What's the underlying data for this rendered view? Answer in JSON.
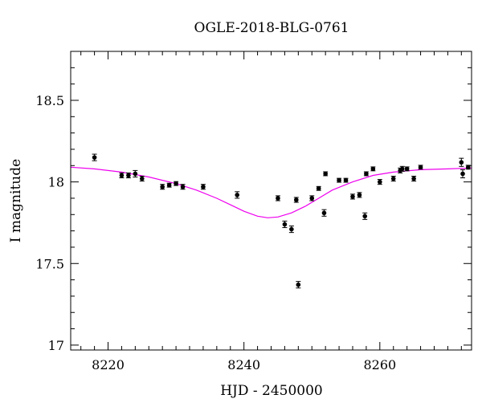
{
  "chart_data": {
    "type": "scatter",
    "title": "OGLE-2018-BLG-0761",
    "xlabel": "HJD - 2450000",
    "ylabel": "I magnitude",
    "xlim": [
      8214.5,
      8273.5
    ],
    "ylim": [
      18.8,
      16.97
    ],
    "y_inverted": true,
    "x_ticks": [
      8220,
      8240,
      8260
    ],
    "x_tick_labels": [
      "8220",
      "8240",
      "8260"
    ],
    "x_minor_step": 2,
    "y_ticks": [
      17,
      17.5,
      18,
      18.5
    ],
    "y_tick_labels": [
      "17",
      "17.5",
      "18",
      "18.5"
    ],
    "y_minor_step": 0.1,
    "grid": false,
    "colors": {
      "data": "#000000",
      "model": "#ee00ee"
    },
    "series": [
      {
        "kind": "points_with_errorbars",
        "points": [
          {
            "x": 8218.0,
            "y": 18.15,
            "err": 0.02
          },
          {
            "x": 8222.0,
            "y": 18.04,
            "err": 0.015
          },
          {
            "x": 8223.0,
            "y": 18.04,
            "err": 0.015
          },
          {
            "x": 8224.0,
            "y": 18.05,
            "err": 0.02
          },
          {
            "x": 8225.0,
            "y": 18.02,
            "err": 0.015
          },
          {
            "x": 8228.0,
            "y": 17.97,
            "err": 0.015
          },
          {
            "x": 8229.0,
            "y": 17.98,
            "err": 0.012
          },
          {
            "x": 8230.0,
            "y": 17.99,
            "err": 0.012
          },
          {
            "x": 8231.0,
            "y": 17.97,
            "err": 0.015
          },
          {
            "x": 8234.0,
            "y": 17.97,
            "err": 0.015
          },
          {
            "x": 8239.0,
            "y": 17.92,
            "err": 0.02
          },
          {
            "x": 8245.0,
            "y": 17.9,
            "err": 0.015
          },
          {
            "x": 8246.0,
            "y": 17.74,
            "err": 0.02
          },
          {
            "x": 8247.0,
            "y": 17.71,
            "err": 0.02
          },
          {
            "x": 8247.7,
            "y": 17.89,
            "err": 0.015
          },
          {
            "x": 8248.0,
            "y": 17.37,
            "err": 0.02
          },
          {
            "x": 8250.0,
            "y": 17.9,
            "err": 0.015
          },
          {
            "x": 8251.0,
            "y": 17.96,
            "err": 0.012
          },
          {
            "x": 8251.8,
            "y": 17.81,
            "err": 0.02
          },
          {
            "x": 8252.0,
            "y": 18.05,
            "err": 0.012
          },
          {
            "x": 8254.0,
            "y": 18.01,
            "err": 0.012
          },
          {
            "x": 8255.0,
            "y": 18.01,
            "err": 0.012
          },
          {
            "x": 8256.0,
            "y": 17.91,
            "err": 0.015
          },
          {
            "x": 8257.0,
            "y": 17.92,
            "err": 0.015
          },
          {
            "x": 8257.8,
            "y": 17.79,
            "err": 0.02
          },
          {
            "x": 8258.0,
            "y": 18.05,
            "err": 0.012
          },
          {
            "x": 8259.0,
            "y": 18.08,
            "err": 0.012
          },
          {
            "x": 8260.0,
            "y": 18.0,
            "err": 0.015
          },
          {
            "x": 8262.0,
            "y": 18.02,
            "err": 0.015
          },
          {
            "x": 8263.0,
            "y": 18.07,
            "err": 0.015
          },
          {
            "x": 8263.3,
            "y": 18.08,
            "err": 0.015
          },
          {
            "x": 8264.0,
            "y": 18.08,
            "err": 0.012
          },
          {
            "x": 8265.0,
            "y": 18.02,
            "err": 0.015
          },
          {
            "x": 8266.0,
            "y": 18.09,
            "err": 0.012
          },
          {
            "x": 8272.0,
            "y": 18.12,
            "err": 0.025
          },
          {
            "x": 8272.2,
            "y": 18.05,
            "err": 0.025
          },
          {
            "x": 8273.0,
            "y": 18.09,
            "err": 0.012
          }
        ]
      },
      {
        "kind": "model_curve",
        "curve": [
          {
            "x": 8214.5,
            "y": 18.09
          },
          {
            "x": 8218.0,
            "y": 18.08
          },
          {
            "x": 8222.0,
            "y": 18.06
          },
          {
            "x": 8226.0,
            "y": 18.03
          },
          {
            "x": 8230.0,
            "y": 17.99
          },
          {
            "x": 8233.0,
            "y": 17.95
          },
          {
            "x": 8236.0,
            "y": 17.9
          },
          {
            "x": 8238.0,
            "y": 17.86
          },
          {
            "x": 8240.0,
            "y": 17.82
          },
          {
            "x": 8242.0,
            "y": 17.79
          },
          {
            "x": 8243.5,
            "y": 17.78
          },
          {
            "x": 8245.0,
            "y": 17.785
          },
          {
            "x": 8247.0,
            "y": 17.81
          },
          {
            "x": 8249.0,
            "y": 17.85
          },
          {
            "x": 8251.0,
            "y": 17.9
          },
          {
            "x": 8253.0,
            "y": 17.95
          },
          {
            "x": 8256.0,
            "y": 18.0
          },
          {
            "x": 8259.0,
            "y": 18.04
          },
          {
            "x": 8262.0,
            "y": 18.06
          },
          {
            "x": 8266.0,
            "y": 18.075
          },
          {
            "x": 8270.0,
            "y": 18.08
          },
          {
            "x": 8273.5,
            "y": 18.085
          }
        ]
      }
    ]
  }
}
